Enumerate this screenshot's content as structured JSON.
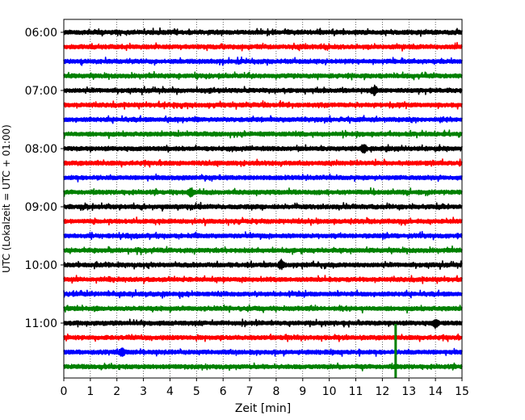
{
  "chart_data": {
    "type": "line",
    "title": "",
    "xlabel": "Zeit  [min]",
    "ylabel": "UTC (Lokalzeit = UTC + 01:00)",
    "xlim": [
      0,
      15
    ],
    "x_ticks": [
      0,
      1,
      2,
      3,
      4,
      5,
      6,
      7,
      8,
      9,
      10,
      11,
      12,
      13,
      14,
      15
    ],
    "x_tick_labels": [
      "0",
      "1",
      "2",
      "3",
      "4",
      "5",
      "6",
      "7",
      "8",
      "9",
      "10",
      "11",
      "12",
      "13",
      "14",
      "15"
    ],
    "y_tick_labels": [
      "06:00",
      "07:00",
      "08:00",
      "09:00",
      "10:00",
      "11:00"
    ],
    "trace_interval_minutes": 15,
    "first_trace": "06:00",
    "trace_count": 24,
    "grid": "vertical dotted",
    "colors": [
      "#000000",
      "#ff0000",
      "#0000ff",
      "#008000"
    ],
    "events": [
      {
        "trace": "11:45",
        "x": 12.5,
        "description": "large vertical spike"
      },
      {
        "trace": "10:00",
        "x": 8.2,
        "description": "burst"
      },
      {
        "trace": "07:00",
        "x": 11.7,
        "description": "burst"
      },
      {
        "trace": "08:00",
        "x": 11.3,
        "description": "burst"
      },
      {
        "trace": "08:45",
        "x": 4.8,
        "description": "burst"
      },
      {
        "trace": "11:00",
        "x": 14.0,
        "description": "burst"
      },
      {
        "trace": "11:30",
        "x": 2.2,
        "description": "burst"
      }
    ]
  }
}
